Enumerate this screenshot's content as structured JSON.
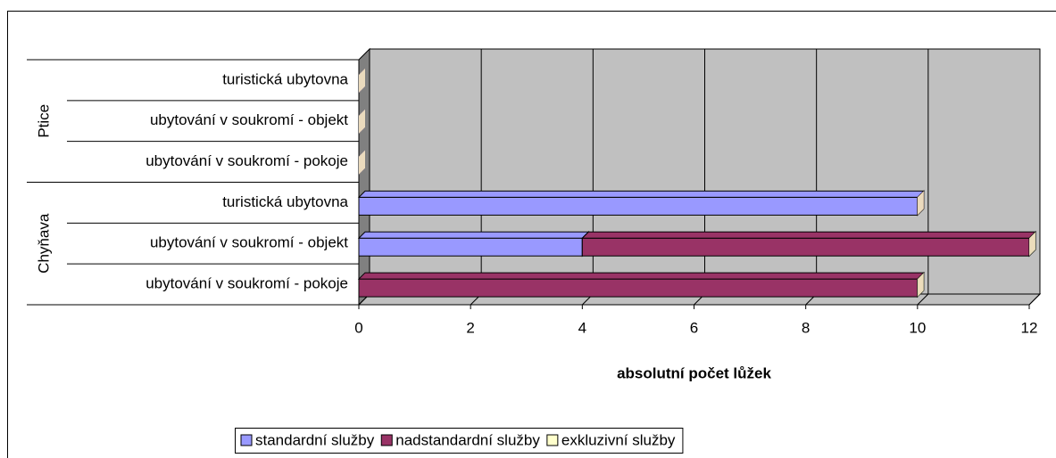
{
  "chart_data": {
    "type": "stacked_bar_3d_horizontal",
    "x_axis_label": "absolutní počet lůžek",
    "categories": [
      "ubytování v soukromí - pokoje",
      "ubytování v soukromí - objekt",
      "turistická ubytovna",
      "ubytování v soukromí - pokoje",
      "ubytování v soukromí - objekt",
      "turistická ubytovna"
    ],
    "category_groups": [
      "Chyňava",
      "Chyňava",
      "Chyňava",
      "Ptice",
      "Ptice",
      "Ptice"
    ],
    "series": [
      {
        "name": "standardní služby",
        "color": "#9999ff",
        "values": [
          0,
          4,
          10,
          0,
          0,
          0
        ]
      },
      {
        "name": "nadstandardní služby",
        "color": "#993366",
        "values": [
          10,
          8,
          0,
          0,
          0,
          0
        ]
      },
      {
        "name": "exkluzivní služby",
        "color": "#ffffcc",
        "values": [
          0,
          0,
          0,
          0,
          0,
          0
        ]
      }
    ],
    "xlim": [
      0,
      12
    ],
    "xticks": [
      0,
      2,
      4,
      6,
      8,
      10,
      12
    ],
    "grid": true,
    "legend": "bottom"
  }
}
